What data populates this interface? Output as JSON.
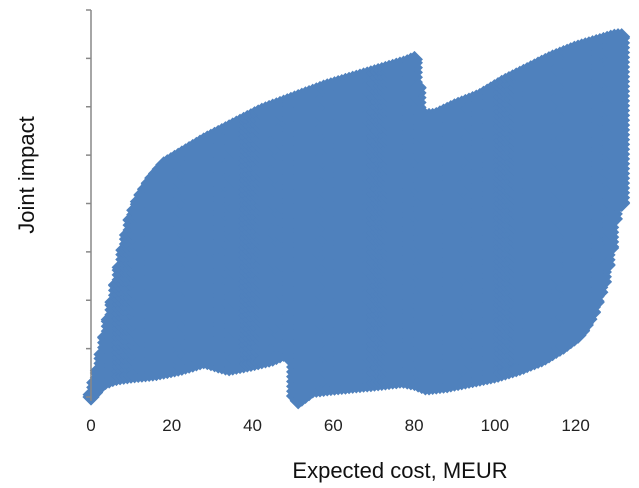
{
  "chart_data": {
    "type": "scatter",
    "title": "",
    "xlabel": "Expected cost, MEUR",
    "ylabel": "Joint impact",
    "xlim": [
      0,
      130
    ],
    "ylim": [
      0,
      8
    ],
    "x_ticks": [
      "0",
      "20",
      "40",
      "60",
      "80",
      "100",
      "120"
    ],
    "y_tick_count": 9,
    "y_tick_labels_shown": false,
    "grid": false,
    "legend": "none",
    "marker": "diamond",
    "colors": {
      "points": "#4f81bd",
      "axis": "#888888"
    },
    "point_cloud_envelope": {
      "description_units": "data units (x: MEUR, y: joint impact)",
      "upper": [
        [
          0,
          0.05
        ],
        [
          2,
          0.6
        ],
        [
          4,
          1.4
        ],
        [
          6,
          2.2
        ],
        [
          8,
          3.0
        ],
        [
          10,
          3.7
        ],
        [
          12,
          4.1
        ],
        [
          15,
          4.5
        ],
        [
          18,
          4.8
        ],
        [
          22,
          5.0
        ],
        [
          28,
          5.3
        ],
        [
          35,
          5.6
        ],
        [
          42,
          5.9
        ],
        [
          50,
          6.15
        ],
        [
          58,
          6.4
        ],
        [
          66,
          6.6
        ],
        [
          72,
          6.75
        ],
        [
          78,
          6.9
        ],
        [
          82,
          7.05
        ],
        [
          84,
          7.2
        ],
        [
          83,
          6.9
        ],
        [
          81,
          6.4
        ],
        [
          82,
          5.8
        ],
        [
          85,
          5.8
        ],
        [
          90,
          6.0
        ],
        [
          96,
          6.2
        ],
        [
          102,
          6.5
        ],
        [
          108,
          6.75
        ],
        [
          114,
          7.0
        ],
        [
          120,
          7.2
        ],
        [
          126,
          7.35
        ],
        [
          130,
          7.45
        ]
      ],
      "lower": [
        [
          0,
          0.0
        ],
        [
          3,
          0.3
        ],
        [
          6,
          0.4
        ],
        [
          10,
          0.45
        ],
        [
          16,
          0.5
        ],
        [
          22,
          0.6
        ],
        [
          28,
          0.75
        ],
        [
          34,
          0.6
        ],
        [
          40,
          0.7
        ],
        [
          45,
          0.8
        ],
        [
          49,
          0.95
        ],
        [
          50,
          0.6
        ],
        [
          50,
          0.1
        ],
        [
          51,
          -0.1
        ],
        [
          55,
          0.15
        ],
        [
          60,
          0.2
        ],
        [
          66,
          0.25
        ],
        [
          72,
          0.3
        ],
        [
          77,
          0.35
        ],
        [
          80,
          0.3
        ],
        [
          83,
          0.2
        ],
        [
          88,
          0.25
        ],
        [
          94,
          0.35
        ],
        [
          100,
          0.45
        ],
        [
          106,
          0.6
        ],
        [
          112,
          0.8
        ],
        [
          117,
          1.05
        ],
        [
          121,
          1.3
        ],
        [
          124,
          1.7
        ],
        [
          127,
          2.4
        ],
        [
          129,
          3.2
        ],
        [
          130,
          4.0
        ]
      ]
    }
  }
}
